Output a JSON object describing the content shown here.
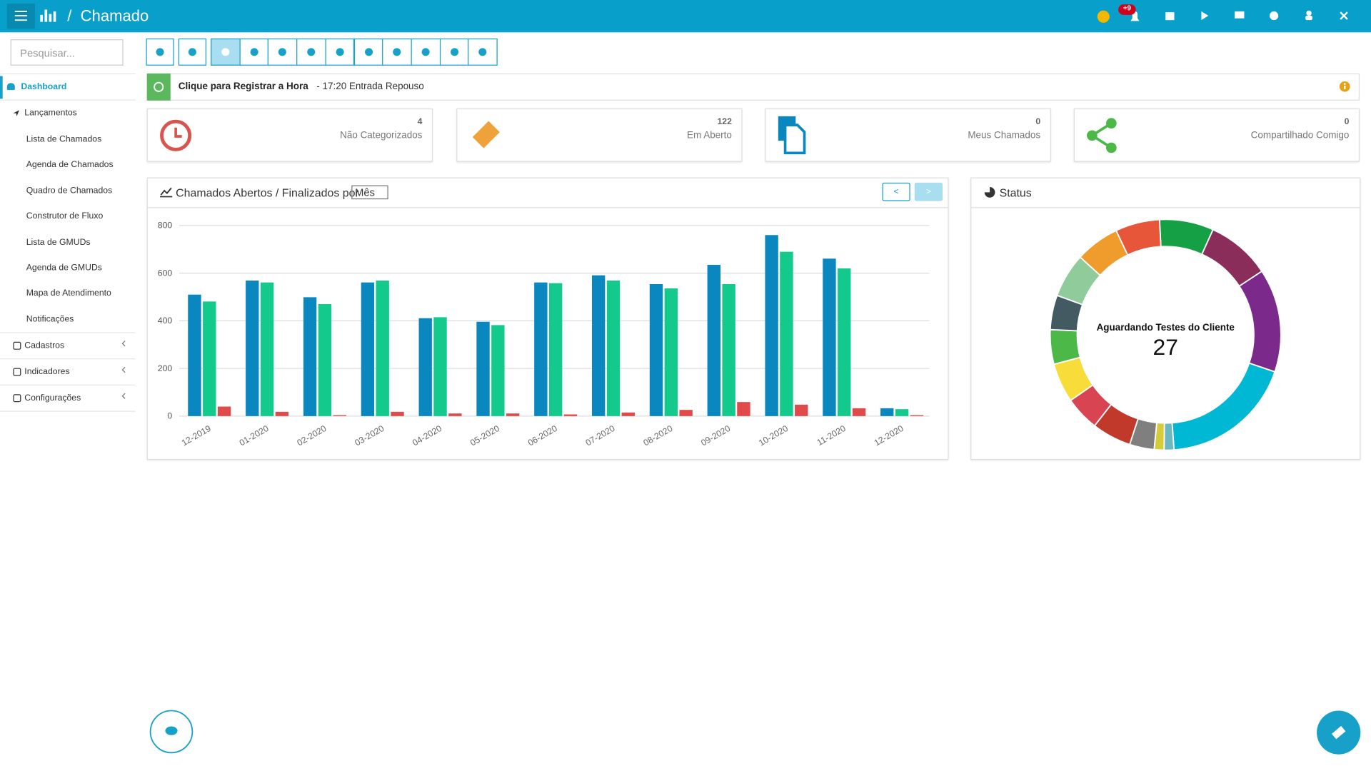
{
  "header": {
    "title": "Chamado",
    "badge": "+9"
  },
  "sidebar": {
    "search": "Pesquisar...",
    "items": [
      "Dashboard",
      "Lançamentos"
    ],
    "subitems": [
      "Lista de Chamados",
      "Agenda de Chamados",
      "Quadro de Chamados",
      "Construtor de Fluxo",
      "Lista de GMUDs",
      "Agenda de GMUDs",
      "Mapa de Atendimento",
      "Notificações"
    ],
    "groups": [
      "Cadastros",
      "Indicadores",
      "Configurações"
    ]
  },
  "timebar": {
    "action": "Clique para Registrar a Hora",
    "status": "- 17:20 Entrada Repouso"
  },
  "cards": [
    {
      "value": 4,
      "label": "Não Categorizados"
    },
    {
      "value": 122,
      "label": "Em Aberto"
    },
    {
      "value": 0,
      "label": "Meus Chamados"
    },
    {
      "value": 0,
      "label": "Compartilhado Comigo"
    }
  ],
  "panels": {
    "bar_title": "Chamados Abertos / Finalizados por",
    "period": "Mês",
    "prev": "<",
    "next": ">",
    "status_title": "Status"
  },
  "chart_data": [
    {
      "type": "bar",
      "categories": [
        "12-2019",
        "01-2020",
        "02-2020",
        "03-2020",
        "04-2020",
        "05-2020",
        "06-2020",
        "07-2020",
        "08-2020",
        "09-2020",
        "10-2020",
        "11-2020",
        "12-2020"
      ],
      "series": [
        {
          "color": "#0a87bf",
          "values": [
            510,
            569,
            499,
            561,
            411,
            396,
            561,
            591,
            554,
            635,
            760,
            661,
            33
          ]
        },
        {
          "color": "#13c98b",
          "values": [
            481,
            561,
            470,
            569,
            415,
            382,
            558,
            569,
            536,
            554,
            690,
            620,
            29
          ]
        },
        {
          "color": "#e04a4a",
          "values": [
            40,
            18,
            4,
            18,
            11,
            11,
            7,
            15,
            26,
            59,
            48,
            33,
            4
          ]
        }
      ],
      "ylim": [
        0,
        800
      ],
      "yticks": [
        0,
        200,
        400,
        600,
        800
      ],
      "grid": true
    },
    {
      "type": "pie",
      "donut": true,
      "categories": [
        null,
        null,
        null,
        "Aguardando Testes do Cliente",
        null,
        null,
        null,
        null,
        null,
        null,
        null,
        null,
        null,
        null,
        null
      ],
      "values": [
        11,
        13,
        21,
        27,
        2,
        2,
        5,
        8,
        7,
        8,
        7,
        7,
        9,
        9,
        9
      ],
      "colors": [
        "#15a046",
        "#8b2d5a",
        "#7b2a8c",
        "#00b7d4",
        "#6bb8c0",
        "#d4cc3a",
        "#7f7f7f",
        "#c0392b",
        "#d94452",
        "#f7dc3a",
        "#4cb848",
        "#445a63",
        "#8fcb9b",
        "#f09c2c",
        "#e8563a"
      ]
    }
  ]
}
